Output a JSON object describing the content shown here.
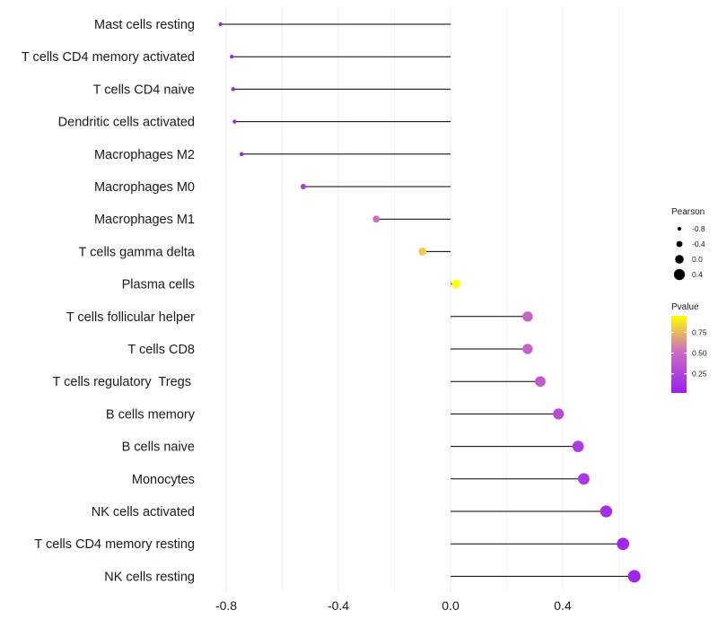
{
  "chart_data": {
    "type": "lollipop",
    "title": "",
    "xlabel": "",
    "ylabel": "",
    "xlim": [
      -0.83,
      0.69
    ],
    "x_ticks": [
      -0.8,
      -0.4,
      0.0,
      0.4
    ],
    "x_tick_labels": [
      "-0.8",
      "-0.4",
      "0.0",
      "0.4"
    ],
    "baseline": 0.0,
    "grid": true,
    "points": [
      {
        "category": "Mast cells resting",
        "pearson": -0.82,
        "pvalue": 0.02
      },
      {
        "category": "T cells CD4 memory activated",
        "pearson": -0.78,
        "pvalue": 0.03
      },
      {
        "category": "T cells CD4 naive",
        "pearson": -0.775,
        "pvalue": 0.03
      },
      {
        "category": "Dendritic cells activated",
        "pearson": -0.77,
        "pvalue": 0.04
      },
      {
        "category": "Macrophages M2",
        "pearson": -0.745,
        "pvalue": 0.05
      },
      {
        "category": "Macrophages M0",
        "pearson": -0.525,
        "pvalue": 0.18
      },
      {
        "category": "Macrophages M1",
        "pearson": -0.265,
        "pvalue": 0.52
      },
      {
        "category": "T cells gamma delta",
        "pearson": -0.1,
        "pvalue": 0.8
      },
      {
        "category": "Plasma cells",
        "pearson": 0.02,
        "pvalue": 0.95
      },
      {
        "category": "T cells follicular helper",
        "pearson": 0.275,
        "pvalue": 0.45
      },
      {
        "category": "T cells CD8",
        "pearson": 0.275,
        "pvalue": 0.45
      },
      {
        "category": "T cells regulatory  Tregs ",
        "pearson": 0.32,
        "pvalue": 0.4
      },
      {
        "category": "B cells memory",
        "pearson": 0.385,
        "pvalue": 0.3
      },
      {
        "category": "B cells naive",
        "pearson": 0.455,
        "pvalue": 0.2
      },
      {
        "category": "Monocytes",
        "pearson": 0.475,
        "pvalue": 0.18
      },
      {
        "category": "NK cells activated",
        "pearson": 0.555,
        "pvalue": 0.12
      },
      {
        "category": "T cells CD4 memory resting",
        "pearson": 0.615,
        "pvalue": 0.08
      },
      {
        "category": "NK cells resting",
        "pearson": 0.655,
        "pvalue": 0.06
      }
    ],
    "legend_size": {
      "title": "Pearson",
      "values": [
        -0.8,
        -0.4,
        0.0,
        0.4
      ],
      "labels": [
        "-0.8",
        "-0.4",
        "0.0",
        "0.4"
      ]
    },
    "legend_color": {
      "title": "Pvalue",
      "range": [
        0.02,
        0.95
      ],
      "ticks": [
        0.75,
        0.5,
        0.25
      ],
      "tick_labels": [
        "0.75",
        "0.50",
        "0.25"
      ],
      "low_color": "#9b1ff0",
      "mid_color": "#cf6fbf",
      "high_color": "#ffff00"
    },
    "line_color": "#000000",
    "grid_color": "#ebebeb"
  }
}
